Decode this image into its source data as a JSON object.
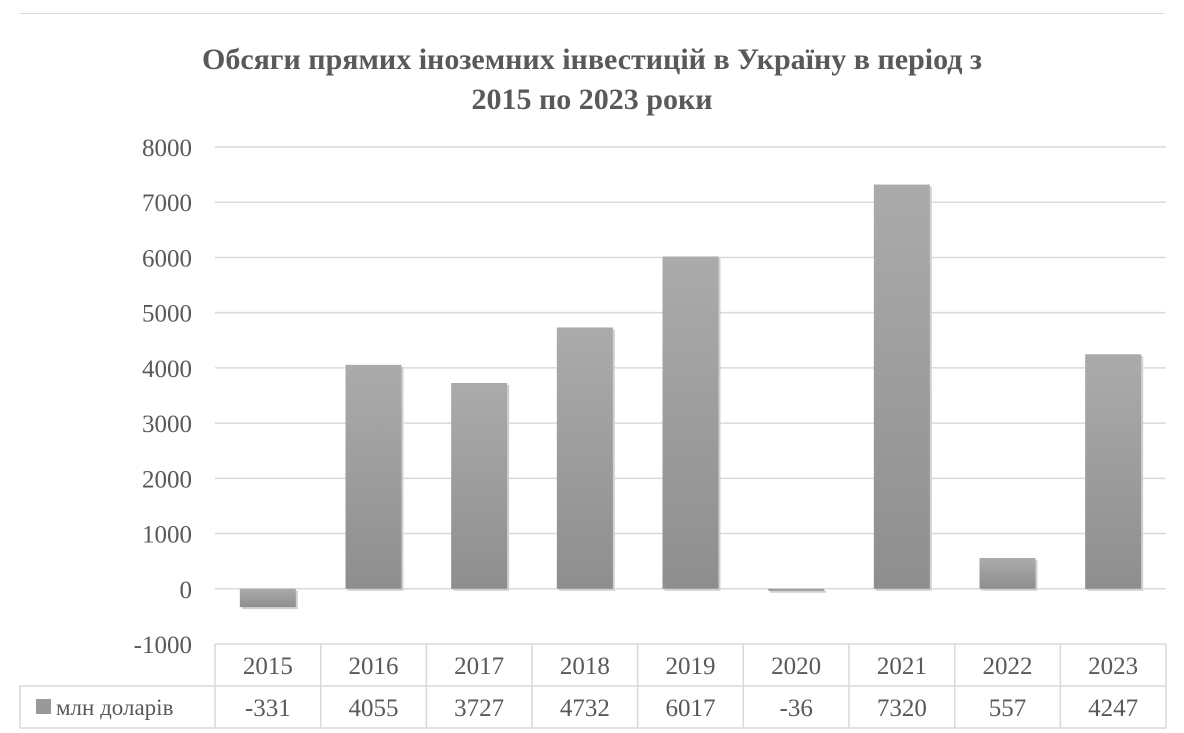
{
  "chart_data": {
    "type": "bar",
    "title_line1": "Обсяги прямих іноземних інвестицій в Україну в період з",
    "title_line2": "2015 по 2023 роки",
    "categories": [
      "2015",
      "2016",
      "2017",
      "2018",
      "2019",
      "2020",
      "2021",
      "2022",
      "2023"
    ],
    "series": [
      {
        "name": "млн доларів",
        "values": [
          -331,
          4055,
          3727,
          4732,
          6017,
          -36,
          7320,
          557,
          4247
        ]
      }
    ],
    "ylim": [
      -1000,
      8000
    ],
    "yticks": [
      "8000",
      "7000",
      "6000",
      "5000",
      "4000",
      "3000",
      "2000",
      "1000",
      "0",
      "-1000"
    ],
    "legend_position": "data-table",
    "grid": true,
    "colors": {
      "bar": "#a6a6a6",
      "bar_dark": "#8c8c8c",
      "grid": "#d9d9d9",
      "text": "#595959"
    }
  }
}
